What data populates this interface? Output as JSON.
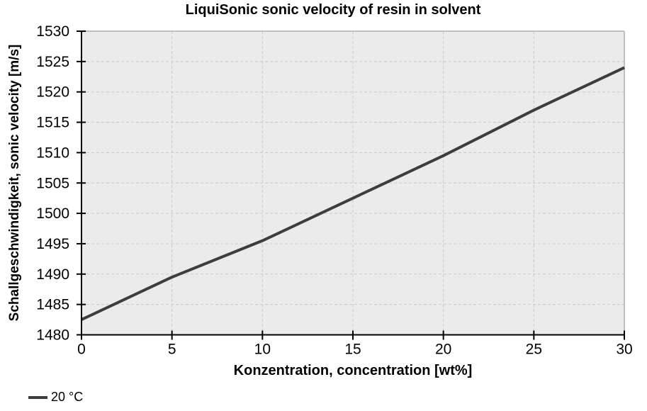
{
  "chart_data": {
    "type": "line",
    "title": "LiquiSonic sonic velocity of resin in solvent",
    "xlabel": "Konzentration, concentration [wt%]",
    "ylabel": "Schallgeschwindigkeit, sonic velocity [m/s]",
    "xlim": [
      0,
      30
    ],
    "ylim": [
      1480,
      1530
    ],
    "xticks": [
      0,
      5,
      10,
      15,
      20,
      25,
      30
    ],
    "yticks": [
      1480,
      1485,
      1490,
      1495,
      1500,
      1505,
      1510,
      1515,
      1520,
      1525,
      1530
    ],
    "grid": "dashed",
    "legend_position": "bottom-left",
    "series": [
      {
        "name": "20 °C",
        "color": "#3d3d3d",
        "x": [
          0,
          5,
          10,
          15,
          20,
          25,
          30
        ],
        "y": [
          1482.5,
          1489.5,
          1495.5,
          1502.5,
          1509.5,
          1517,
          1524
        ]
      }
    ],
    "colors": {
      "canvas": "#ffffff",
      "plot_background": "#ebebeb",
      "gridline": "#c9c9c9",
      "plot_border": "#bfbfbf",
      "axis": "#000000",
      "text": "#000000"
    }
  }
}
